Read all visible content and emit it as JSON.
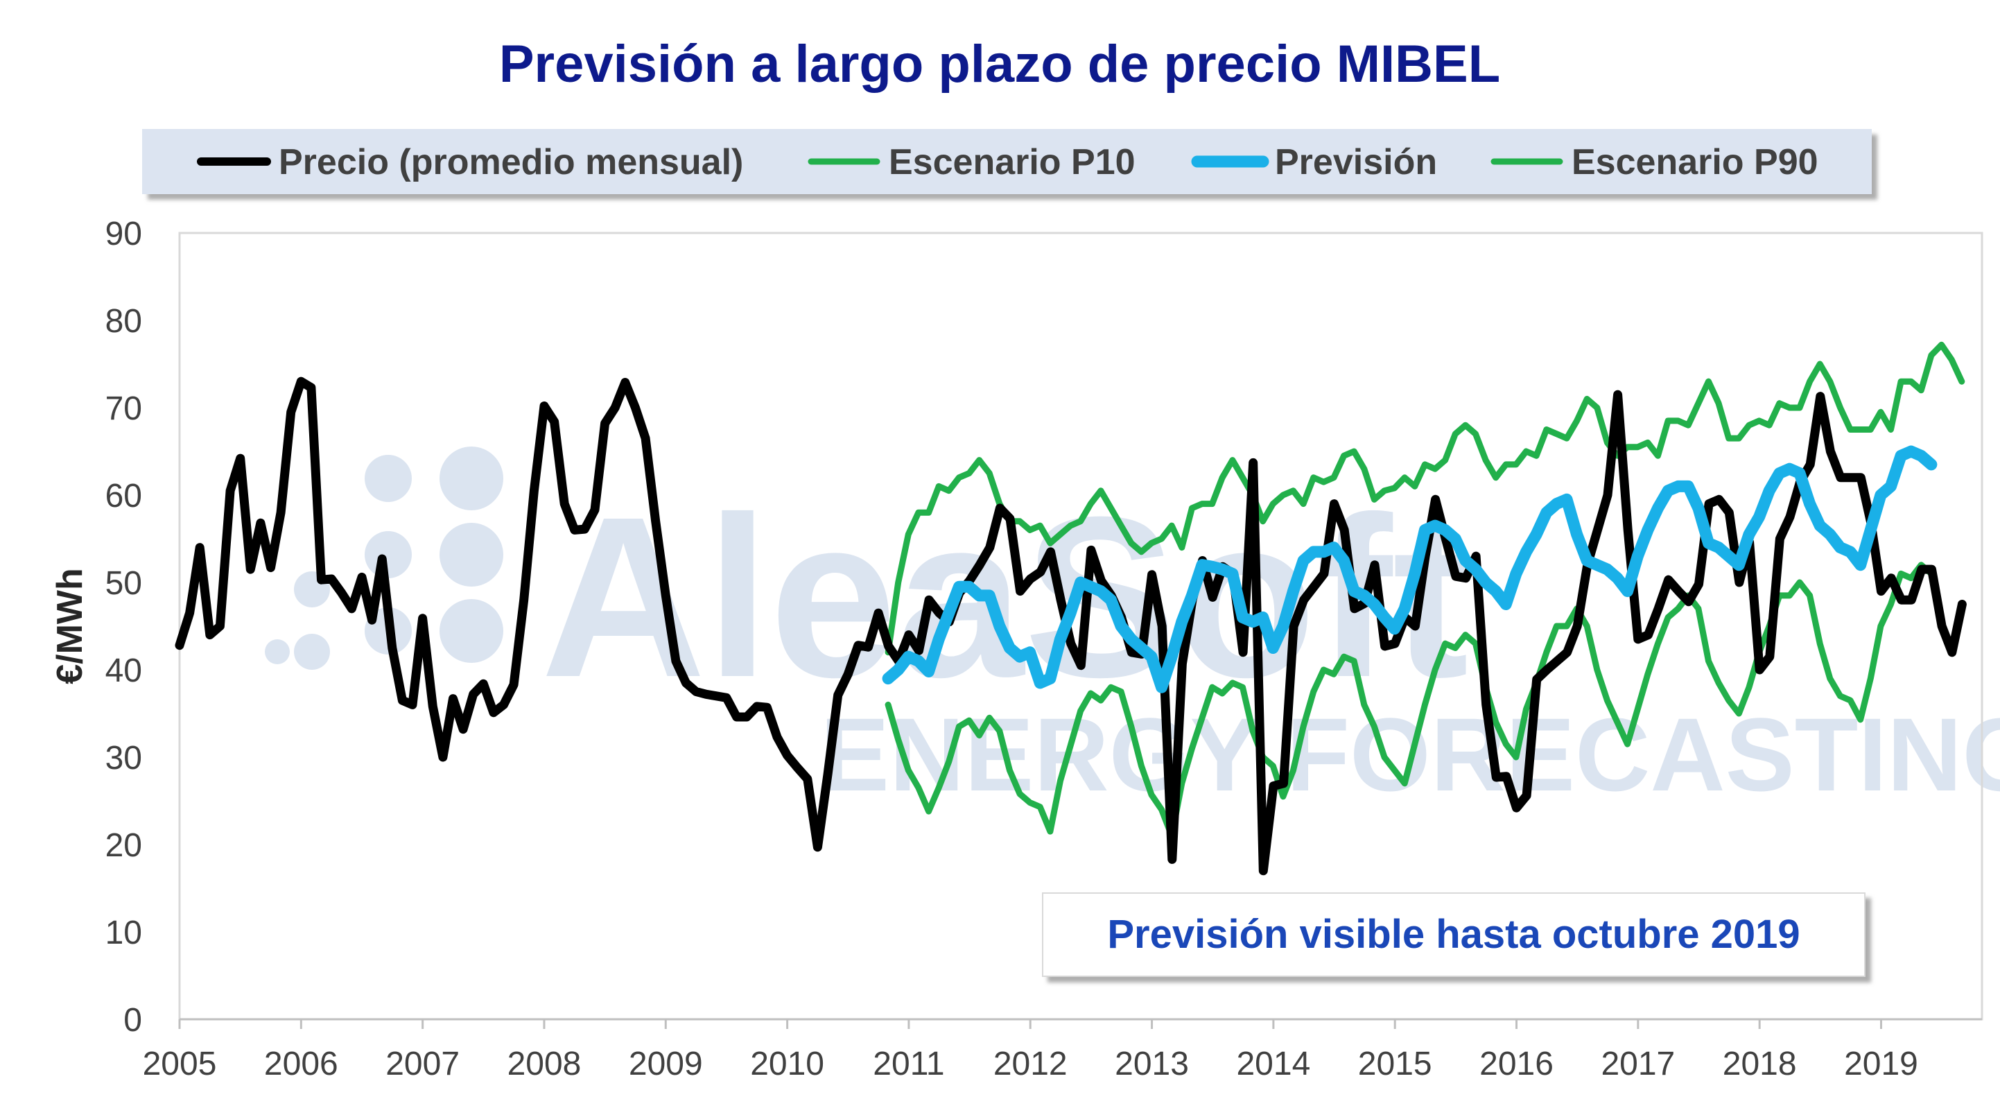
{
  "chart_data": {
    "type": "line",
    "title": "Previsión a largo plazo de precio MIBEL",
    "ylabel": "€/MWh",
    "xlabel": "",
    "ylim": [
      0,
      90
    ],
    "yticks": [
      0,
      10,
      20,
      30,
      40,
      50,
      60,
      70,
      80,
      90
    ],
    "xlim": [
      2005,
      2019.83
    ],
    "xticks": [
      2005,
      2006,
      2007,
      2008,
      2009,
      2010,
      2011,
      2012,
      2013,
      2014,
      2015,
      2016,
      2017,
      2018,
      2019
    ],
    "legend_position": "top",
    "legend": [
      {
        "label": "Precio (promedio mensual)",
        "color": "#000000"
      },
      {
        "label": "Escenario P10",
        "color": "#22b04b"
      },
      {
        "label": "Previsión",
        "color": "#1ab0e8"
      },
      {
        "label": "Escenario P90",
        "color": "#22b04b"
      }
    ],
    "annotation": "Previsión visible hasta octubre 2019",
    "watermark": "AleaSoft ENERGY FORECASTING",
    "grid": false,
    "series": [
      {
        "name": "Precio (promedio mensual)",
        "color": "#000000",
        "start": 2005.0,
        "step_months": 1,
        "values": [
          42.8,
          46.5,
          54.0,
          44.0,
          45.0,
          60.5,
          64.2,
          51.5,
          56.8,
          51.7,
          58.0,
          69.5,
          73.0,
          72.3,
          50.3,
          50.4,
          48.8,
          47.0,
          50.6,
          45.7,
          52.7,
          42.5,
          36.5,
          36.0,
          45.9,
          35.8,
          30.0,
          36.7,
          33.2,
          37.2,
          38.4,
          35.1,
          36.0,
          38.3,
          48.0,
          60.5,
          70.2,
          68.4,
          59.0,
          56.0,
          56.1,
          58.3,
          68.2,
          70.0,
          72.9,
          70.0,
          66.5,
          57.0,
          48.5,
          41.0,
          38.5,
          37.5,
          37.2,
          37.0,
          36.8,
          34.6,
          34.6,
          35.8,
          35.7,
          32.3,
          30.2,
          28.8,
          27.5,
          19.7,
          28.0,
          37.1,
          39.5,
          42.8,
          42.6,
          46.5,
          42.7,
          41.0,
          44.0,
          42.2,
          48.0,
          46.5,
          45.5,
          48.8,
          50.2,
          52.0,
          54.0,
          58.5,
          57.3,
          49.0,
          50.4,
          51.2,
          53.5,
          48.0,
          43.0,
          40.5,
          53.7,
          50.2,
          48.5,
          46.0,
          42.0,
          41.8,
          50.9,
          45.0,
          18.3,
          40.7,
          48.0,
          52.5,
          48.3,
          51.8,
          51.0,
          42.0,
          63.7,
          17.0,
          26.7,
          27.0,
          45.0,
          48.0,
          49.5,
          51.0,
          59.0,
          56.0,
          47.0,
          47.6,
          52.0,
          42.7,
          43.0,
          46.0,
          45.0,
          53.0,
          59.5,
          55.0,
          50.7,
          50.5,
          53.0,
          36.0,
          27.7,
          27.8,
          24.2,
          25.6,
          38.9,
          40.0,
          41.0,
          42.0,
          45.0,
          52.0,
          56.0,
          60.0,
          71.5,
          56.0,
          43.5,
          44.0,
          47.0,
          50.3,
          49.0,
          47.8,
          49.8,
          59.0,
          59.5,
          58.0,
          50.0,
          54.6,
          40.0,
          41.5,
          55.0,
          57.5,
          61.5,
          63.5,
          71.3,
          65.0,
          62.0,
          62.0,
          62.0,
          56.8,
          49.0,
          50.5,
          48.0,
          48.0,
          51.5,
          51.5,
          45.0,
          42.0,
          47.5
        ]
      },
      {
        "name": "Escenario P10",
        "color": "#22b04b",
        "start": 2010.83,
        "step_months": 1,
        "values": [
          36.0,
          32.0,
          28.5,
          26.5,
          23.8,
          26.5,
          29.5,
          33.5,
          34.2,
          32.5,
          34.5,
          33.0,
          28.5,
          25.8,
          24.8,
          24.3,
          21.5,
          27.3,
          31.3,
          35.3,
          37.3,
          36.5,
          38.0,
          37.5,
          33.5,
          29.0,
          25.7,
          24.0,
          21.0,
          27.0,
          31.0,
          34.5,
          38.0,
          37.3,
          38.5,
          38.0,
          33.0,
          30.0,
          29.0,
          25.5,
          28.5,
          33.5,
          37.5,
          40.0,
          39.5,
          41.5,
          41.0,
          36.0,
          33.5,
          30.0,
          28.5,
          27.0,
          31.5,
          36.0,
          40.0,
          43.0,
          42.5,
          44.0,
          43.0,
          38.0,
          34.0,
          31.5,
          30.0,
          35.5,
          38.5,
          42.0,
          45.0,
          45.0,
          47.0,
          45.0,
          40.0,
          36.5,
          34.0,
          31.5,
          35.5,
          39.5,
          43.0,
          46.0,
          47.0,
          48.5,
          47.0,
          41.0,
          38.5,
          36.5,
          35.0,
          38.0,
          42.0,
          45.0,
          48.5,
          48.5,
          50.0,
          48.5,
          43.0,
          39.0,
          37.0,
          36.5,
          34.3,
          39.0,
          45.0,
          47.5,
          51.0,
          50.5,
          52.0,
          51.0
        ]
      },
      {
        "name": "Previsión",
        "color": "#1ab0e8",
        "start": 2010.83,
        "step_months": 1,
        "values": [
          39.0,
          40.0,
          41.5,
          41.0,
          39.8,
          43.5,
          46.5,
          49.5,
          49.5,
          48.5,
          48.5,
          45.0,
          42.5,
          41.5,
          42.0,
          38.5,
          39.0,
          43.5,
          46.5,
          50.0,
          49.5,
          49.0,
          48.0,
          45.0,
          43.5,
          42.5,
          41.5,
          38.0,
          41.5,
          45.5,
          48.5,
          52.0,
          51.8,
          51.5,
          51.0,
          46.0,
          45.5,
          46.0,
          42.5,
          45.0,
          49.0,
          52.5,
          53.5,
          53.5,
          54.0,
          52.5,
          49.0,
          48.5,
          47.5,
          46.0,
          44.7,
          47.0,
          51.0,
          56.0,
          56.5,
          56.0,
          55.0,
          52.5,
          51.5,
          50.0,
          49.0,
          47.5,
          51.0,
          53.5,
          55.5,
          58.0,
          59.0,
          59.5,
          55.5,
          52.5,
          52.0,
          51.5,
          50.5,
          49.0,
          53.0,
          56.0,
          58.5,
          60.5,
          61.0,
          61.0,
          58.5,
          54.5,
          54.0,
          53.0,
          52.0,
          55.5,
          57.5,
          60.5,
          62.5,
          63.0,
          62.5,
          59.0,
          56.5,
          55.5,
          54.0,
          53.5,
          52.0,
          56.0,
          60.0,
          61.0,
          64.5,
          65.0,
          64.5,
          63.5
        ]
      },
      {
        "name": "Escenario P90",
        "color": "#22b04b",
        "start": 2010.83,
        "step_months": 1,
        "values": [
          42.0,
          50.0,
          55.5,
          58.0,
          58.0,
          61.0,
          60.5,
          62.0,
          62.5,
          64.0,
          62.5,
          59.0,
          57.0,
          57.0,
          56.0,
          56.5,
          54.5,
          55.5,
          56.5,
          57.0,
          59.0,
          60.5,
          58.5,
          56.5,
          54.5,
          53.5,
          54.5,
          55.0,
          56.5,
          54.0,
          58.5,
          59.0,
          59.0,
          62.0,
          64.0,
          62.0,
          60.0,
          57.0,
          59.0,
          60.0,
          60.5,
          59.0,
          62.0,
          61.5,
          62.0,
          64.5,
          65.0,
          63.0,
          59.5,
          60.5,
          60.8,
          62.0,
          61.0,
          63.5,
          63.0,
          64.0,
          67.0,
          68.0,
          67.0,
          64.0,
          62.0,
          63.5,
          63.5,
          65.0,
          64.5,
          67.5,
          67.0,
          66.5,
          68.5,
          71.0,
          70.0,
          66.0,
          64.5,
          65.5,
          65.5,
          66.0,
          64.5,
          68.5,
          68.5,
          68.0,
          70.5,
          73.0,
          70.5,
          66.5,
          66.5,
          68.0,
          68.5,
          68.0,
          70.5,
          70.0,
          70.0,
          73.0,
          75.0,
          73.0,
          70.0,
          67.5,
          67.5,
          67.5,
          69.5,
          67.5,
          73.0,
          73.0,
          72.0,
          76.0,
          77.2,
          75.5,
          73.0
        ]
      }
    ]
  }
}
